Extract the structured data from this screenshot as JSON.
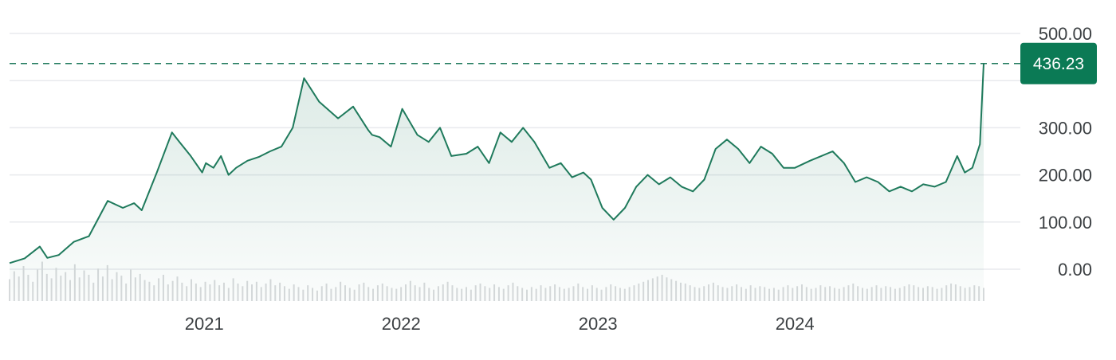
{
  "chart_data": {
    "type": "area",
    "title": "",
    "xlabel": "",
    "ylabel": "",
    "x_tick_labels": [
      "2021",
      "2022",
      "2023",
      "2024"
    ],
    "y_tick_labels": [
      "500.00",
      "300.00",
      "200.00",
      "100.00",
      "0.00"
    ],
    "ylim": [
      -25,
      500
    ],
    "grid": true,
    "last_value": 436.23,
    "last_value_label": "436.23",
    "colors": {
      "line": "#1f7a5c",
      "fill": "#1f7a5c",
      "label_bg": "#0b7a55",
      "grid": "#e8eaed",
      "volume": "#d8dadc"
    },
    "series": [
      {
        "x": [
          "2020-01-06",
          "2020-02-03",
          "2020-03-02",
          "2020-03-16",
          "2020-04-06",
          "2020-05-04",
          "2020-06-01",
          "2020-07-06",
          "2020-08-03",
          "2020-08-24",
          "2020-09-07",
          "2020-10-05",
          "2020-11-02",
          "2020-11-16",
          "2020-12-07",
          "2020-12-28",
          "2021-01-04",
          "2021-01-18",
          "2021-02-01",
          "2021-02-15",
          "2021-03-01",
          "2021-03-22",
          "2021-04-12",
          "2021-05-03",
          "2021-05-24",
          "2021-06-14",
          "2021-07-05",
          "2021-08-02",
          "2021-09-06",
          "2021-10-04",
          "2021-11-01",
          "2021-11-08",
          "2021-11-22",
          "2021-12-13",
          "2022-01-03",
          "2022-01-31",
          "2022-02-21",
          "2022-03-14",
          "2022-04-04",
          "2022-05-02",
          "2022-05-23",
          "2022-06-13",
          "2022-07-04",
          "2022-07-25",
          "2022-08-15",
          "2022-09-05",
          "2022-10-03",
          "2022-10-24",
          "2022-11-14",
          "2022-12-05",
          "2022-12-19",
          "2023-01-09",
          "2023-01-30",
          "2023-02-20",
          "2023-03-13",
          "2023-04-03",
          "2023-04-24",
          "2023-05-15",
          "2023-06-05",
          "2023-06-26",
          "2023-07-17",
          "2023-08-07",
          "2023-08-28",
          "2023-09-18",
          "2023-10-09",
          "2023-10-30",
          "2023-11-20",
          "2023-12-11",
          "2024-01-01",
          "2024-01-29",
          "2024-02-19",
          "2024-03-11",
          "2024-04-01",
          "2024-04-22",
          "2024-05-13",
          "2024-06-03",
          "2024-06-24",
          "2024-07-15",
          "2024-08-05",
          "2024-08-26",
          "2024-09-16",
          "2024-10-07",
          "2024-10-28",
          "2024-11-11",
          "2024-11-25",
          "2024-12-09",
          "2024-12-16"
        ],
        "values": [
          13,
          23,
          48,
          24,
          30,
          58,
          70,
          145,
          130,
          140,
          125,
          205,
          290,
          270,
          240,
          205,
          225,
          215,
          240,
          200,
          215,
          230,
          238,
          250,
          260,
          300,
          405,
          355,
          320,
          345,
          295,
          285,
          280,
          260,
          340,
          285,
          270,
          300,
          240,
          245,
          260,
          225,
          290,
          270,
          300,
          270,
          215,
          225,
          195,
          205,
          190,
          130,
          105,
          130,
          175,
          200,
          180,
          195,
          175,
          165,
          190,
          255,
          275,
          255,
          225,
          260,
          245,
          215,
          215,
          230,
          240,
          250,
          225,
          185,
          195,
          185,
          165,
          175,
          165,
          180,
          175,
          185,
          240,
          205,
          215,
          265,
          436.23
        ]
      }
    ],
    "volume": [
      25,
      34,
      28,
      40,
      30,
      22,
      36,
      45,
      31,
      26,
      38,
      29,
      33,
      24,
      42,
      27,
      35,
      30,
      21,
      37,
      28,
      41,
      25,
      33,
      29,
      20,
      36,
      27,
      31,
      24,
      22,
      18,
      26,
      30,
      19,
      23,
      28,
      21,
      17,
      25,
      20,
      16,
      22,
      19,
      24,
      18,
      21,
      15,
      26,
      20,
      17,
      23,
      19,
      22,
      16,
      20,
      25,
      18,
      21,
      17,
      14,
      19,
      16,
      13,
      18,
      15,
      12,
      17,
      20,
      14,
      16,
      22,
      18,
      15,
      13,
      19,
      21,
      16,
      14,
      18,
      20,
      17,
      15,
      14,
      16,
      19,
      23,
      18,
      16,
      21,
      15,
      13,
      17,
      19,
      22,
      18,
      15,
      14,
      16,
      13,
      18,
      20,
      17,
      15,
      19,
      16,
      14,
      18,
      21,
      17,
      15,
      13,
      16,
      14,
      18,
      15,
      17,
      19,
      16,
      14,
      15,
      17,
      20,
      16,
      14,
      18,
      15,
      13,
      16,
      19,
      17,
      15,
      14,
      16,
      18,
      20,
      22,
      24,
      26,
      28,
      30,
      27,
      25,
      23,
      21,
      20,
      18,
      16,
      15,
      17,
      19,
      21,
      18,
      16,
      15,
      17,
      19,
      16,
      14,
      18,
      15,
      17,
      16,
      14,
      15,
      13,
      16,
      18,
      15,
      17,
      19,
      16,
      14,
      15,
      18,
      16,
      17,
      15,
      14,
      16,
      18,
      20,
      17,
      15,
      14,
      16,
      18,
      15,
      17,
      16,
      14,
      15,
      17,
      19,
      18,
      16,
      15,
      17,
      16,
      14,
      15,
      18,
      20,
      19,
      17,
      15,
      16,
      18,
      17,
      15
    ]
  }
}
